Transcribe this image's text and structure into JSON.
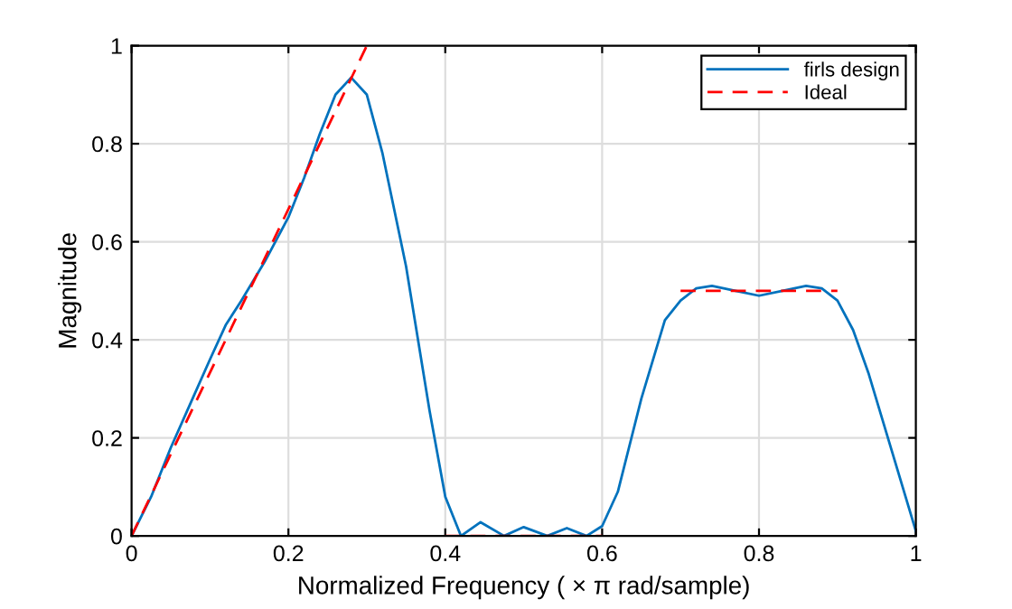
{
  "chart_data": {
    "type": "line",
    "xlabel": "Normalized Frequency ( × π rad/sample)",
    "ylabel": "Magnitude",
    "xlim": [
      0,
      1
    ],
    "ylim": [
      0,
      1
    ],
    "xticks": [
      0,
      0.2,
      0.4,
      0.6,
      0.8,
      1
    ],
    "yticks": [
      0,
      0.2,
      0.4,
      0.6,
      0.8,
      1
    ],
    "grid": true,
    "legend": "top right",
    "series": [
      {
        "name": "firls design",
        "color": "#0072bd",
        "line_style": "solid",
        "x": [
          0,
          0.025,
          0.05,
          0.075,
          0.1,
          0.12,
          0.14,
          0.17,
          0.2,
          0.22,
          0.24,
          0.26,
          0.28,
          0.3,
          0.32,
          0.35,
          0.38,
          0.4,
          0.42,
          0.445,
          0.475,
          0.5,
          0.53,
          0.555,
          0.58,
          0.6,
          0.62,
          0.65,
          0.68,
          0.7,
          0.72,
          0.74,
          0.77,
          0.8,
          0.83,
          0.86,
          0.88,
          0.9,
          0.92,
          0.94,
          0.97,
          1
        ],
        "values": [
          0,
          0.08,
          0.18,
          0.27,
          0.36,
          0.43,
          0.48,
          0.56,
          0.65,
          0.73,
          0.82,
          0.9,
          0.935,
          0.9,
          0.78,
          0.55,
          0.255,
          0.08,
          0,
          0.028,
          0,
          0.018,
          0,
          0.016,
          0,
          0.02,
          0.09,
          0.28,
          0.44,
          0.48,
          0.505,
          0.51,
          0.5,
          0.49,
          0.5,
          0.51,
          0.505,
          0.48,
          0.42,
          0.33,
          0.17,
          0.01
        ]
      },
      {
        "name": "Ideal",
        "color": "#ff0000",
        "line_style": "dashed",
        "x": [
          0,
          0.3,
          0.35,
          0.4,
          0.6,
          0.65,
          0.7,
          0.9
        ],
        "values": [
          0,
          1,
          null,
          0,
          0,
          null,
          0.5,
          0.5
        ]
      }
    ]
  }
}
